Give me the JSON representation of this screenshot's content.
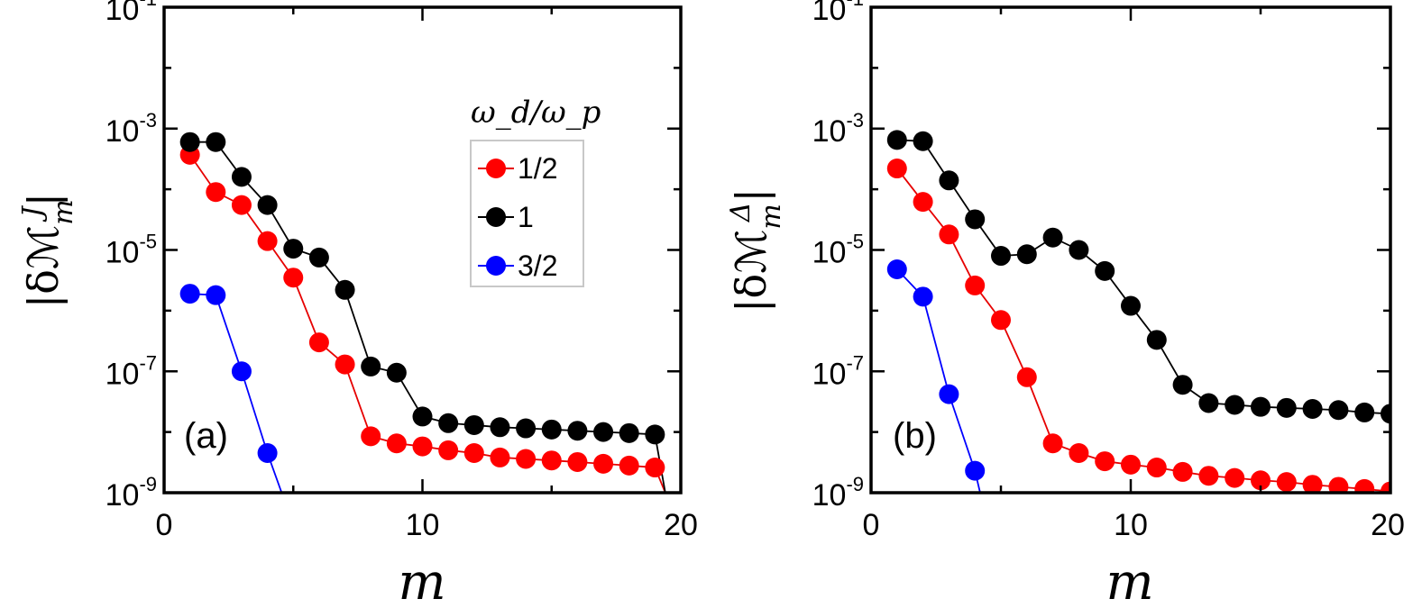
{
  "chart_data": [
    {
      "type": "line",
      "panel_label": "(a)",
      "xlabel": "m",
      "ylabel": "|δℳ",
      "ylabel_sup": "J",
      "ylabel_sub": "m",
      "xlim": [
        0,
        20
      ],
      "ylim_log10": [
        -9,
        -1
      ],
      "y_scale": "log",
      "x_ticks": [
        0,
        10,
        20
      ],
      "y_ticks": [
        {
          "base": "10",
          "exp": "-1",
          "log": -1
        },
        {
          "base": "10",
          "exp": "-3",
          "log": -3
        },
        {
          "base": "10",
          "exp": "-5",
          "log": -5
        },
        {
          "base": "10",
          "exp": "-7",
          "log": -7
        },
        {
          "base": "10",
          "exp": "-9",
          "log": -9
        }
      ],
      "series": [
        {
          "name": "1/2",
          "color": "#ff0000",
          "line_color": "#e60000",
          "points": [
            [
              1,
              0.00037
            ],
            [
              2,
              9e-05
            ],
            [
              3,
              5.5e-05
            ],
            [
              4,
              1.4e-05
            ],
            [
              5,
              3.5e-06
            ],
            [
              6,
              3e-07
            ],
            [
              7,
              1.3e-07
            ],
            [
              8,
              8.5e-09
            ],
            [
              9,
              6.5e-09
            ],
            [
              10,
              5.8e-09
            ],
            [
              11,
              5e-09
            ],
            [
              12,
              4.5e-09
            ],
            [
              13,
              3.8e-09
            ],
            [
              14,
              3.6e-09
            ],
            [
              15,
              3.4e-09
            ],
            [
              16,
              3.2e-09
            ],
            [
              17,
              3e-09
            ],
            [
              18,
              2.8e-09
            ],
            [
              19,
              2.6e-09
            ]
          ],
          "tail_to": [
            19.4,
            1e-09
          ]
        },
        {
          "name": "1",
          "color": "#000000",
          "line_color": "#000000",
          "points": [
            [
              1,
              0.0006
            ],
            [
              2,
              0.0006
            ],
            [
              3,
              0.00016
            ],
            [
              4,
              5.5e-05
            ],
            [
              5,
              1.05e-05
            ],
            [
              6,
              7.5e-06
            ],
            [
              7,
              2.2e-06
            ],
            [
              8,
              1.2e-07
            ],
            [
              9,
              9.5e-08
            ],
            [
              10,
              1.8e-08
            ],
            [
              11,
              1.4e-08
            ],
            [
              12,
              1.3e-08
            ],
            [
              13,
              1.2e-08
            ],
            [
              14,
              1.15e-08
            ],
            [
              15,
              1.1e-08
            ],
            [
              16,
              1.05e-08
            ],
            [
              17,
              1e-08
            ],
            [
              18,
              9.6e-09
            ],
            [
              19,
              9.1e-09
            ]
          ],
          "tail_to": [
            19.4,
            1e-09
          ]
        },
        {
          "name": "3/2",
          "color": "#0000ff",
          "line_color": "#0000ff",
          "points": [
            [
              1,
              1.9e-06
            ],
            [
              2,
              1.8e-06
            ],
            [
              3,
              1e-07
            ],
            [
              4,
              4.5e-09
            ]
          ],
          "tail_to": [
            4.55,
            1e-09
          ]
        }
      ],
      "legend": {
        "title": "ω_d/ω_p",
        "entries": [
          "1/2",
          "1",
          "3/2"
        ]
      }
    },
    {
      "type": "line",
      "panel_label": "(b)",
      "xlabel": "m",
      "ylabel": "|δℳ",
      "ylabel_sup": "Δ",
      "ylabel_sub": "m",
      "xlim": [
        0,
        20
      ],
      "ylim_log10": [
        -9,
        -1
      ],
      "y_scale": "log",
      "x_ticks": [
        0,
        10,
        20
      ],
      "y_ticks": [
        {
          "base": "10",
          "exp": "-1",
          "log": -1
        },
        {
          "base": "10",
          "exp": "-3",
          "log": -3
        },
        {
          "base": "10",
          "exp": "-5",
          "log": -5
        },
        {
          "base": "10",
          "exp": "-7",
          "log": -7
        },
        {
          "base": "10",
          "exp": "-9",
          "log": -9
        }
      ],
      "series": [
        {
          "name": "1/2",
          "color": "#ff0000",
          "line_color": "#e60000",
          "points": [
            [
              1,
              0.00022
            ],
            [
              2,
              6.2e-05
            ],
            [
              3,
              1.8e-05
            ],
            [
              4,
              2.6e-06
            ],
            [
              5,
              7e-07
            ],
            [
              6,
              8e-08
            ],
            [
              7,
              6.5e-09
            ],
            [
              8,
              4.5e-09
            ],
            [
              9,
              3.3e-09
            ],
            [
              10,
              2.9e-09
            ],
            [
              11,
              2.6e-09
            ],
            [
              12,
              2.2e-09
            ],
            [
              13,
              1.9e-09
            ],
            [
              14,
              1.75e-09
            ],
            [
              15,
              1.6e-09
            ],
            [
              16,
              1.5e-09
            ],
            [
              17,
              1.35e-09
            ],
            [
              18,
              1.25e-09
            ],
            [
              19,
              1.15e-09
            ],
            [
              20,
              1.05e-09
            ]
          ],
          "tail_to": null
        },
        {
          "name": "1",
          "color": "#000000",
          "line_color": "#000000",
          "points": [
            [
              1,
              0.00065
            ],
            [
              2,
              0.00062
            ],
            [
              3,
              0.00014
            ],
            [
              4,
              3.2e-05
            ],
            [
              5,
              8e-06
            ],
            [
              6,
              8.5e-06
            ],
            [
              7,
              1.6e-05
            ],
            [
              8,
              1e-05
            ],
            [
              9,
              4.5e-06
            ],
            [
              10,
              1.2e-06
            ],
            [
              11,
              3.3e-07
            ],
            [
              12,
              6e-08
            ],
            [
              13,
              3e-08
            ],
            [
              14,
              2.8e-08
            ],
            [
              15,
              2.6e-08
            ],
            [
              16,
              2.5e-08
            ],
            [
              17,
              2.4e-08
            ],
            [
              18,
              2.3e-08
            ],
            [
              19,
              2.1e-08
            ],
            [
              20,
              2e-08
            ]
          ],
          "tail_to": null
        },
        {
          "name": "3/2",
          "color": "#0000ff",
          "line_color": "#0000ff",
          "points": [
            [
              1,
              4.8e-06
            ],
            [
              2,
              1.7e-06
            ],
            [
              3,
              4.2e-08
            ],
            [
              4,
              2.3e-09
            ]
          ],
          "tail_to": [
            4.2,
            1e-09
          ]
        }
      ]
    }
  ]
}
